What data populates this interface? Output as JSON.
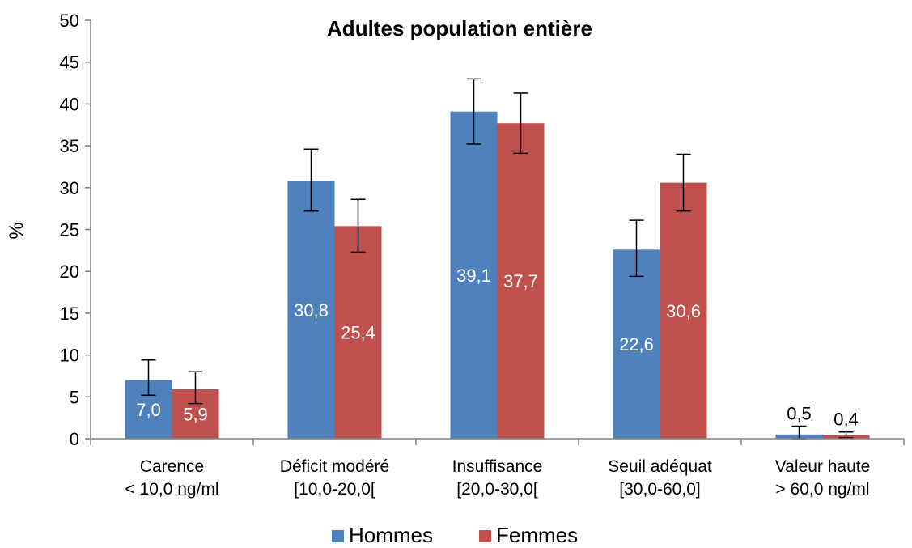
{
  "chart_data": {
    "type": "bar",
    "title": "Adultes population entière",
    "ylabel": "%",
    "xlabel": "",
    "ylim": [
      0,
      50
    ],
    "yticks": [
      0,
      5,
      10,
      15,
      20,
      25,
      30,
      35,
      40,
      45,
      50
    ],
    "grid": false,
    "legend_position": "bottom",
    "categories": [
      [
        "Carence",
        "< 10,0 ng/ml"
      ],
      [
        "Déficit modéré",
        "[10,0-20,0["
      ],
      [
        "Insuffisance",
        "[20,0-30,0["
      ],
      [
        "Seuil adéquat",
        "[30,0-60,0]"
      ],
      [
        "Valeur haute",
        "> 60,0 ng/ml"
      ]
    ],
    "series": [
      {
        "name": "Hommes",
        "color": "#4F81BD",
        "values": [
          7.0,
          30.8,
          39.1,
          22.6,
          0.5
        ],
        "labels": [
          "7,0",
          "30,8",
          "39,1",
          "22,6",
          "0,5"
        ],
        "error_low": [
          5.2,
          27.2,
          35.2,
          19.4,
          0.0
        ],
        "error_high": [
          9.4,
          34.6,
          43.0,
          26.1,
          1.5
        ]
      },
      {
        "name": "Femmes",
        "color": "#C0504D",
        "values": [
          5.9,
          25.4,
          37.7,
          30.6,
          0.4
        ],
        "labels": [
          "5,9",
          "25,4",
          "37,7",
          "30,6",
          "0,4"
        ],
        "error_low": [
          4.2,
          22.3,
          34.1,
          27.2,
          0.1
        ],
        "error_high": [
          8.0,
          28.6,
          41.3,
          34.0,
          0.8
        ]
      }
    ]
  }
}
